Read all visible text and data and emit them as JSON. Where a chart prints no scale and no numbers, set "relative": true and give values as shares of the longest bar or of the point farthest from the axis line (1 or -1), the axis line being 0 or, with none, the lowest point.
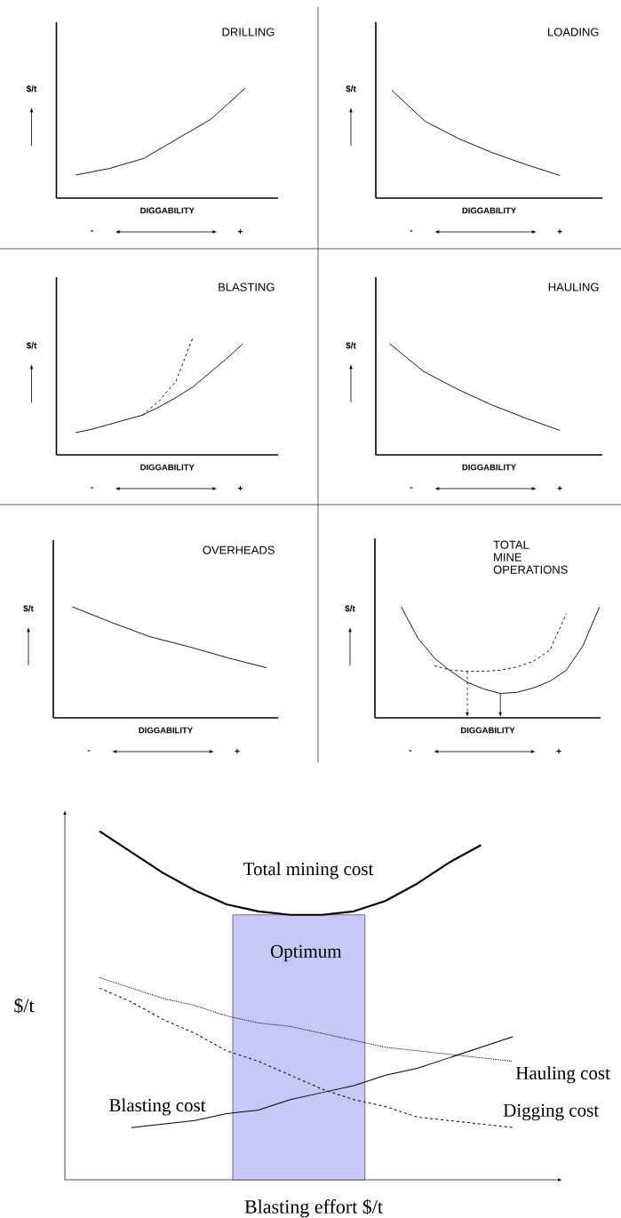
{
  "chart_data": [
    {
      "type": "line",
      "title": "DRILLING",
      "xlabel": "DIGGABILITY",
      "ylabel": "$/t",
      "annotations": [
        "-",
        "+"
      ],
      "relative": true,
      "tick_labels": false,
      "categories": [
        null,
        null,
        null,
        null,
        null,
        null
      ],
      "series": [
        {
          "color": "#000000",
          "values": [
            0.21,
            0.27,
            0.36,
            0.54,
            0.72,
            1
          ]
        }
      ]
    },
    {
      "type": "line",
      "title": "LOADING",
      "xlabel": "DIGGABILITY",
      "ylabel": "$/t",
      "annotations": [
        "-",
        "+"
      ],
      "relative": true,
      "tick_labels": false,
      "categories": [
        null,
        null,
        null,
        null,
        null,
        null
      ],
      "series": [
        {
          "color": "#000000",
          "values": [
            1,
            0.71,
            0.55,
            0.42,
            0.31,
            0.21
          ]
        }
      ]
    },
    {
      "type": "line",
      "title": "BLASTING",
      "xlabel": "DIGGABILITY",
      "ylabel": "$/t",
      "annotations": [
        "-",
        "+"
      ],
      "relative": true,
      "tick_labels": false,
      "categories": [
        null,
        null,
        null,
        null,
        null,
        null,
        null,
        null,
        null,
        null,
        null
      ],
      "series": [
        {
          "color": "#000000",
          "values": [
            0.19,
            0.22,
            0.26,
            0.3,
            0.34,
            0.41,
            0.49,
            0.58,
            0.7,
            0.82,
            0.95
          ]
        },
        {
          "color": "#000000",
          "line_style": "dashed",
          "values": [
            null,
            null,
            null,
            null,
            0.34,
            0.46,
            0.63,
            1,
            null,
            null,
            null
          ]
        }
      ]
    },
    {
      "type": "line",
      "title": "HAULING",
      "xlabel": "DIGGABILITY",
      "ylabel": "$/t",
      "annotations": [
        "-",
        "+"
      ],
      "relative": true,
      "tick_labels": false,
      "categories": [
        null,
        null,
        null,
        null,
        null,
        null
      ],
      "series": [
        {
          "color": "#000000",
          "values": [
            1,
            0.75,
            0.59,
            0.45,
            0.33,
            0.22
          ]
        }
      ]
    },
    {
      "type": "line",
      "title": "OVERHEADS",
      "xlabel": "DIGGABILITY",
      "ylabel": "$/t",
      "annotations": [
        "-",
        "+"
      ],
      "relative": true,
      "tick_labels": false,
      "categories": [
        null,
        null,
        null,
        null,
        null,
        null
      ],
      "series": [
        {
          "color": "#000000",
          "values": [
            1,
            0.86,
            0.73,
            0.64,
            0.54,
            0.45
          ]
        }
      ]
    },
    {
      "type": "line",
      "title": "TOTAL MINE OPERATIONS",
      "xlabel": "DIGGABILITY",
      "ylabel": "$/t",
      "annotations": [
        "-",
        "+"
      ],
      "relative": true,
      "tick_labels": false,
      "categories": [
        null,
        null,
        null,
        null,
        null,
        null,
        null,
        null,
        null,
        null,
        null,
        null,
        null
      ],
      "series": [
        {
          "color": "#000000",
          "values": [
            1,
            0.72,
            0.54,
            0.42,
            0.32,
            0.26,
            0.22,
            0.23,
            0.27,
            0.33,
            0.43,
            0.65,
            1
          ]
        },
        {
          "color": "#000000",
          "line_style": "dashed",
          "values": [
            null,
            null,
            0.47,
            0.43,
            0.42,
            0.42,
            0.43,
            0.46,
            0.51,
            0.61,
            0.94,
            null,
            null
          ]
        }
      ]
    },
    {
      "type": "line",
      "xlabel": "Blasting effort $/t",
      "ylabel": "$/t",
      "relative": true,
      "tick_labels": false,
      "categories": [
        null,
        null,
        null,
        null,
        null,
        null,
        null,
        null,
        null,
        null,
        null,
        null,
        null,
        null
      ],
      "annotations": [
        "Optimum"
      ],
      "series": [
        {
          "name": "Total mining cost",
          "color": "#000000",
          "values": [
            1,
            0.94,
            0.88,
            0.83,
            0.79,
            0.77,
            0.76,
            0.76,
            0.77,
            0.8,
            0.85,
            0.91,
            0.96,
            null
          ]
        },
        {
          "name": "Hauling cost",
          "color": "#000000",
          "line_style": "dotted",
          "values": [
            0.58,
            0.55,
            0.52,
            0.5,
            0.47,
            0.45,
            0.44,
            0.42,
            0.4,
            0.38,
            0.37,
            0.36,
            0.35,
            0.34
          ]
        },
        {
          "name": "Digging cost",
          "color": "#000000",
          "line_style": "dashed",
          "values": [
            0.55,
            0.51,
            0.46,
            0.42,
            0.37,
            0.34,
            0.3,
            0.26,
            0.23,
            0.21,
            0.18,
            0.17,
            0.16,
            0.15
          ]
        },
        {
          "name": "Blasting cost",
          "color": "#000000",
          "values": [
            null,
            0.15,
            0.16,
            0.17,
            0.19,
            0.2,
            0.23,
            0.25,
            0.27,
            0.3,
            0.32,
            0.35,
            0.38,
            0.41
          ]
        }
      ]
    }
  ]
}
